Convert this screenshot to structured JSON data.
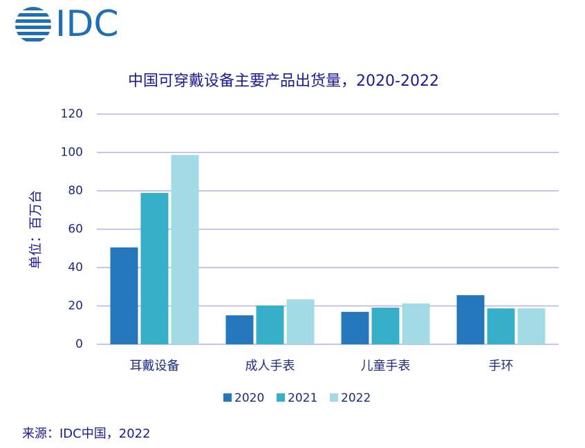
{
  "logo": "IDC",
  "source": "来源：IDC中国，2022",
  "chart_data": {
    "type": "bar",
    "title": "中国可穿戴设备主要产品出货量，2020-2022",
    "y_label": "单位：百万台",
    "categories": [
      "耳戴设备",
      "成人手表",
      "儿童手表",
      "手环"
    ],
    "series": [
      {
        "name": "2020",
        "color": "#2577bb",
        "values": [
          50.5,
          15.1,
          16.9,
          25.6
        ]
      },
      {
        "name": "2021",
        "color": "#37afc8",
        "values": [
          78.9,
          20.2,
          19.1,
          18.7
        ]
      },
      {
        "name": "2022",
        "color": "#a2dbe6",
        "values": [
          98.7,
          23.4,
          21.3,
          18.7
        ]
      }
    ],
    "ylim": [
      0,
      120
    ],
    "yticks": [
      0,
      20,
      40,
      60,
      80,
      100,
      120
    ],
    "grid": true
  }
}
